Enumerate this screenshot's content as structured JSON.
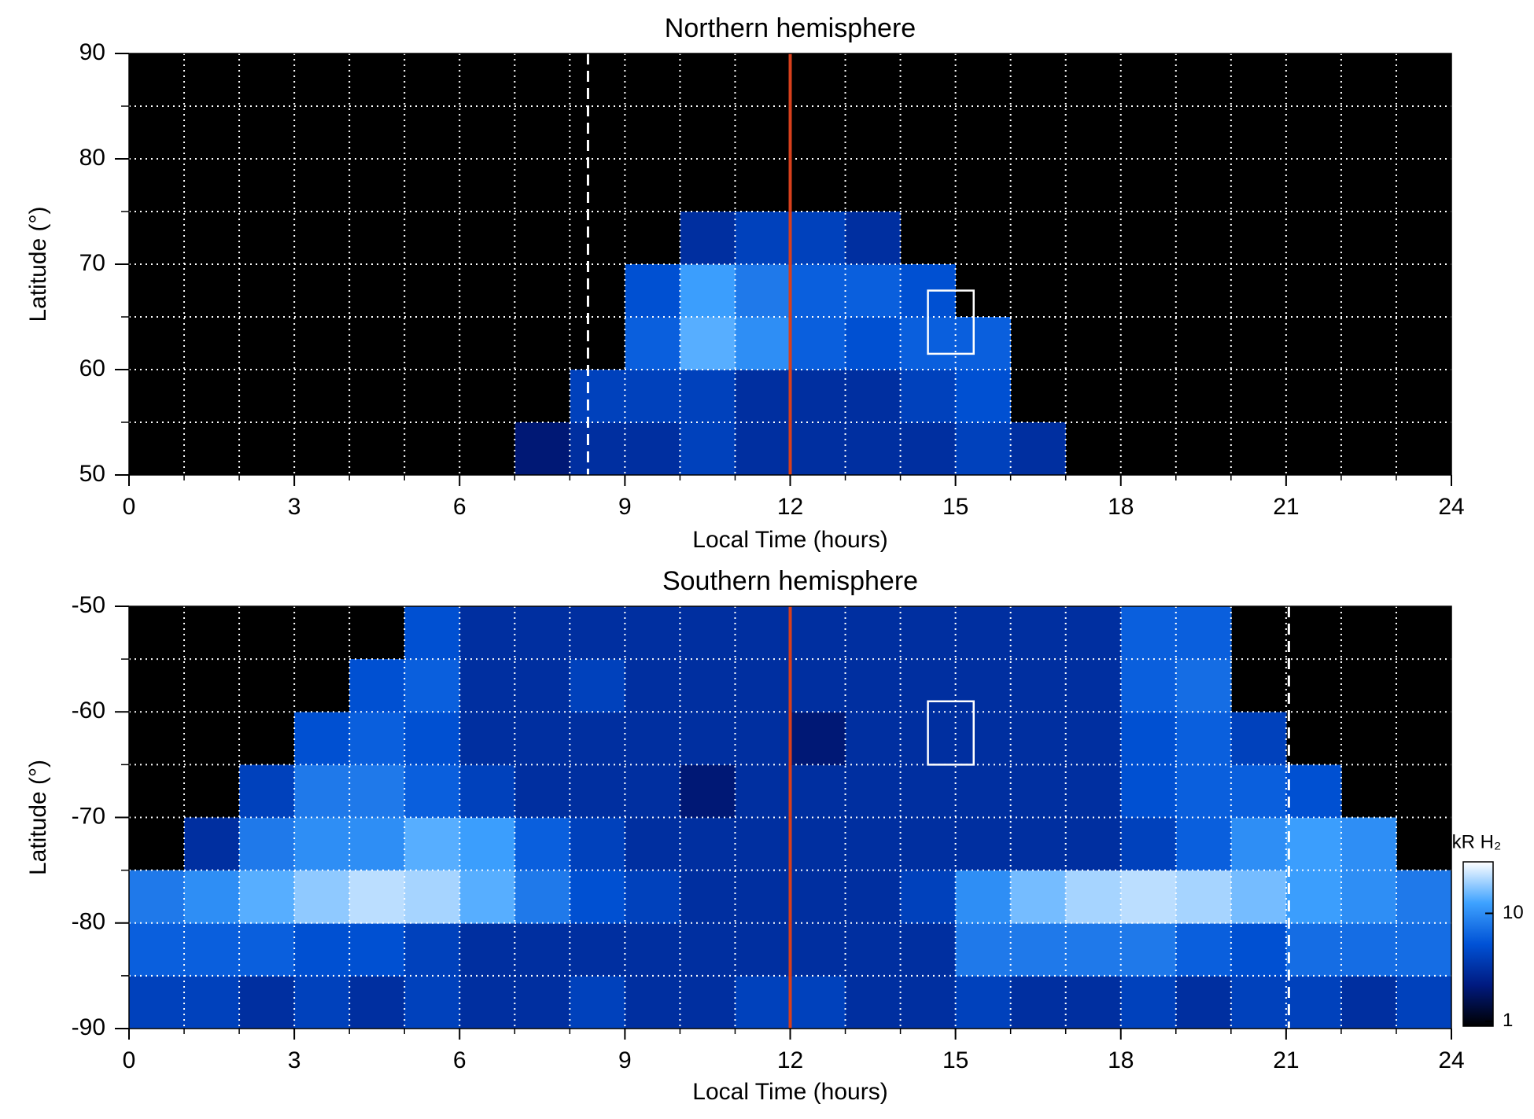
{
  "chart_data": [
    {
      "type": "heatmap",
      "title": "Northern hemisphere",
      "xlabel": "Local Time (hours)",
      "ylabel": "Latitude (°)",
      "xlim": [
        0,
        24
      ],
      "xticks": [
        0,
        3,
        6,
        9,
        12,
        15,
        18,
        21,
        24
      ],
      "xgrid": [
        1,
        2,
        3,
        4,
        5,
        6,
        7,
        8,
        9,
        10,
        11,
        12,
        13,
        14,
        15,
        16,
        17,
        18,
        19,
        20,
        21,
        22,
        23
      ],
      "ylim": [
        50,
        90
      ],
      "yticks": [
        50,
        60,
        70,
        80,
        90
      ],
      "ygrid": [
        55,
        60,
        65,
        70,
        75,
        80,
        85
      ],
      "time_bins": [
        0,
        1,
        2,
        3,
        4,
        5,
        6,
        7,
        8,
        9,
        10,
        11,
        12,
        13,
        14,
        15,
        16,
        17,
        18,
        19,
        20,
        21,
        22,
        23,
        24
      ],
      "lat_bins": [
        50,
        55,
        60,
        65,
        70,
        75,
        80,
        85,
        90
      ],
      "values": [
        [
          null,
          null,
          null,
          null,
          null,
          null,
          null,
          2,
          3,
          3,
          4,
          3,
          3,
          3,
          3,
          4,
          3,
          null,
          null,
          null,
          null,
          null,
          null,
          null
        ],
        [
          null,
          null,
          null,
          null,
          null,
          null,
          null,
          null,
          4,
          4,
          4,
          3,
          3,
          3,
          4,
          5,
          null,
          null,
          null,
          null,
          null,
          null,
          null,
          null
        ],
        [
          null,
          null,
          null,
          null,
          null,
          null,
          null,
          null,
          null,
          6,
          14,
          10,
          6,
          5,
          6,
          6,
          null,
          null,
          null,
          null,
          null,
          null,
          null,
          null
        ],
        [
          null,
          null,
          null,
          null,
          null,
          null,
          null,
          null,
          null,
          5,
          12,
          8,
          6,
          6,
          5,
          null,
          null,
          null,
          null,
          null,
          null,
          null,
          null,
          null
        ],
        [
          null,
          null,
          null,
          null,
          null,
          null,
          null,
          null,
          null,
          null,
          3,
          4,
          4,
          3,
          null,
          null,
          null,
          null,
          null,
          null,
          null,
          null,
          null,
          null
        ],
        [
          null,
          null,
          null,
          null,
          null,
          null,
          null,
          null,
          null,
          null,
          null,
          null,
          null,
          null,
          null,
          null,
          null,
          null,
          null,
          null,
          null,
          null,
          null,
          null
        ],
        [
          null,
          null,
          null,
          null,
          null,
          null,
          null,
          null,
          null,
          null,
          null,
          null,
          null,
          null,
          null,
          null,
          null,
          null,
          null,
          null,
          null,
          null,
          null,
          null
        ],
        [
          null,
          null,
          null,
          null,
          null,
          null,
          null,
          null,
          null,
          null,
          null,
          null,
          null,
          null,
          null,
          null,
          null,
          null,
          null,
          null,
          null,
          null,
          null,
          null
        ]
      ],
      "vlines": [
        {
          "x": 8.33,
          "color": "#ffffff",
          "style": "dashed"
        },
        {
          "x": 12,
          "color": "#d8401c",
          "style": "solid"
        }
      ],
      "boxes": [
        {
          "x": [
            14.5,
            15.33
          ],
          "y": [
            61.5,
            67.5
          ],
          "color": "#ffffff"
        }
      ],
      "colormap": [
        "#000000",
        "#001a80",
        "#0052d6",
        "#3ea2ff",
        "#ffffff"
      ],
      "clim": [
        0.9,
        30
      ],
      "log_color": true,
      "grid": true
    },
    {
      "type": "heatmap",
      "title": "Southern hemisphere",
      "xlabel": "Local Time (hours)",
      "ylabel": "Latitude (°)",
      "xlim": [
        0,
        24
      ],
      "xticks": [
        0,
        3,
        6,
        9,
        12,
        15,
        18,
        21,
        24
      ],
      "xgrid": [
        1,
        2,
        3,
        4,
        5,
        6,
        7,
        8,
        9,
        10,
        11,
        12,
        13,
        14,
        15,
        16,
        17,
        18,
        19,
        20,
        21,
        22,
        23
      ],
      "ylim": [
        -90,
        -50
      ],
      "yticks": [
        -90,
        -80,
        -70,
        -60,
        -50
      ],
      "ygrid": [
        -85,
        -80,
        -75,
        -70,
        -65,
        -60,
        -55
      ],
      "time_bins": [
        0,
        1,
        2,
        3,
        4,
        5,
        6,
        7,
        8,
        9,
        10,
        11,
        12,
        13,
        14,
        15,
        16,
        17,
        18,
        19,
        20,
        21,
        22,
        23,
        24
      ],
      "lat_bins": [
        -90,
        -85,
        -80,
        -75,
        -70,
        -65,
        -60,
        -55,
        -50
      ],
      "values": [
        [
          4,
          4,
          3,
          4,
          3,
          4,
          3,
          3,
          4,
          3,
          3,
          4,
          4,
          3,
          3,
          4,
          3,
          3,
          4,
          3,
          4,
          4,
          3,
          4
        ],
        [
          6,
          6,
          6,
          5,
          5,
          4,
          3,
          3,
          3,
          3,
          3,
          3,
          3,
          3,
          3,
          8,
          8,
          8,
          8,
          6,
          5,
          7,
          7,
          7
        ],
        [
          8,
          10,
          14,
          18,
          22,
          20,
          14,
          8,
          5,
          4,
          3,
          3,
          3,
          3,
          4,
          10,
          16,
          20,
          22,
          20,
          16,
          12,
          10,
          8
        ],
        [
          null,
          3,
          8,
          10,
          10,
          14,
          12,
          6,
          4,
          3,
          3,
          3,
          3,
          3,
          3,
          3,
          3,
          3,
          4,
          6,
          10,
          12,
          10,
          null
        ],
        [
          null,
          null,
          4,
          8,
          8,
          6,
          4,
          3,
          3,
          3,
          2,
          3,
          3,
          3,
          3,
          3,
          3,
          3,
          5,
          6,
          6,
          5,
          null,
          null
        ],
        [
          null,
          null,
          null,
          5,
          6,
          5,
          3,
          3,
          3,
          3,
          3,
          3,
          2,
          3,
          3,
          3,
          3,
          3,
          5,
          6,
          4,
          null,
          null,
          null
        ],
        [
          null,
          null,
          null,
          null,
          5,
          6,
          3,
          3,
          4,
          3,
          3,
          3,
          3,
          3,
          3,
          3,
          3,
          3,
          6,
          7,
          null,
          null,
          null,
          null
        ],
        [
          null,
          null,
          null,
          null,
          null,
          5,
          3,
          3,
          3,
          3,
          3,
          3,
          3,
          3,
          3,
          3,
          3,
          3,
          6,
          6,
          null,
          null,
          null,
          null
        ]
      ],
      "vlines": [
        {
          "x": 21.05,
          "color": "#ffffff",
          "style": "dashed"
        },
        {
          "x": 12,
          "color": "#d8401c",
          "style": "solid"
        }
      ],
      "boxes": [
        {
          "x": [
            14.5,
            15.33
          ],
          "y": [
            -65,
            -59
          ],
          "color": "#ffffff"
        }
      ],
      "colormap": [
        "#000000",
        "#001a80",
        "#0052d6",
        "#3ea2ff",
        "#ffffff"
      ],
      "clim": [
        0.9,
        30
      ],
      "log_color": true,
      "grid": true,
      "colorbar": {
        "label": "kR H₂",
        "ticks": [
          1,
          10
        ]
      }
    }
  ]
}
